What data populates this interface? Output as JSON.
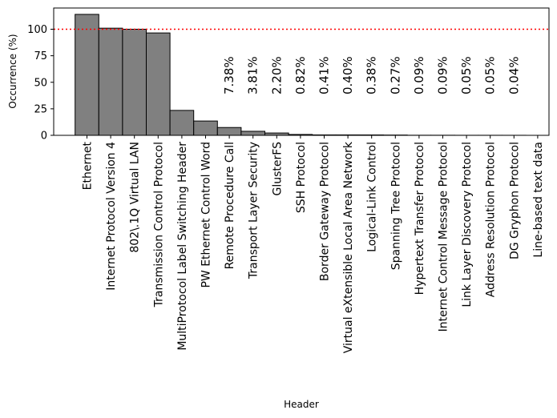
{
  "chart_data": {
    "type": "bar",
    "title": "",
    "xlabel": "Header",
    "ylabel": "Occurrence (%)",
    "ylim": [
      0,
      120
    ],
    "yticks": [
      0,
      25,
      50,
      75,
      100
    ],
    "grid": false,
    "reference_line": {
      "y": 100,
      "color": "#ff0000",
      "style": "dotted"
    },
    "bar_color": "#808080",
    "bar_edge_color": "#000000",
    "categories": [
      "Ethernet",
      "Internet Protocol Version 4",
      "802\\.1Q Virtual LAN",
      "Transmission Control Protocol",
      "MultiProtocol Label Switching Header",
      "PW Ethernet Control Word",
      "Remote Procedure Call",
      "Transport Layer Security",
      "GlusterFS",
      "SSH Protocol",
      "Border Gateway Protocol",
      "Virtual eXtensible Local Area Network",
      "Logical-Link Control",
      "Spanning Tree Protocol",
      "Hypertext Transfer Protocol",
      "Internet Control Message Protocol",
      "Link Layer Discovery Protocol",
      "Address Resolution Protocol",
      "DG Gryphon Protocol",
      "Line-based text data"
    ],
    "values": [
      114,
      101,
      100,
      96.5,
      23.5,
      13.5,
      7.38,
      3.81,
      2.2,
      0.82,
      0.41,
      0.4,
      0.38,
      0.27,
      0.09,
      0.09,
      0.05,
      0.05,
      0.04,
      0
    ],
    "annotations": [
      {
        "category": "Remote Procedure Call",
        "label": "7.38%"
      },
      {
        "category": "Transport Layer Security",
        "label": "3.81%"
      },
      {
        "category": "GlusterFS",
        "label": "2.20%"
      },
      {
        "category": "SSH Protocol",
        "label": "0.82%"
      },
      {
        "category": "Border Gateway Protocol",
        "label": "0.41%"
      },
      {
        "category": "Virtual eXtensible Local Area Network",
        "label": "0.40%"
      },
      {
        "category": "Logical-Link Control",
        "label": "0.38%"
      },
      {
        "category": "Spanning Tree Protocol",
        "label": "0.27%"
      },
      {
        "category": "Hypertext Transfer Protocol",
        "label": "0.09%"
      },
      {
        "category": "Internet Control Message Protocol",
        "label": "0.09%"
      },
      {
        "category": "Link Layer Discovery Protocol",
        "label": "0.05%"
      },
      {
        "category": "Address Resolution Protocol",
        "label": "0.05%"
      },
      {
        "category": "DG Gryphon Protocol",
        "label": "0.04%"
      }
    ]
  }
}
